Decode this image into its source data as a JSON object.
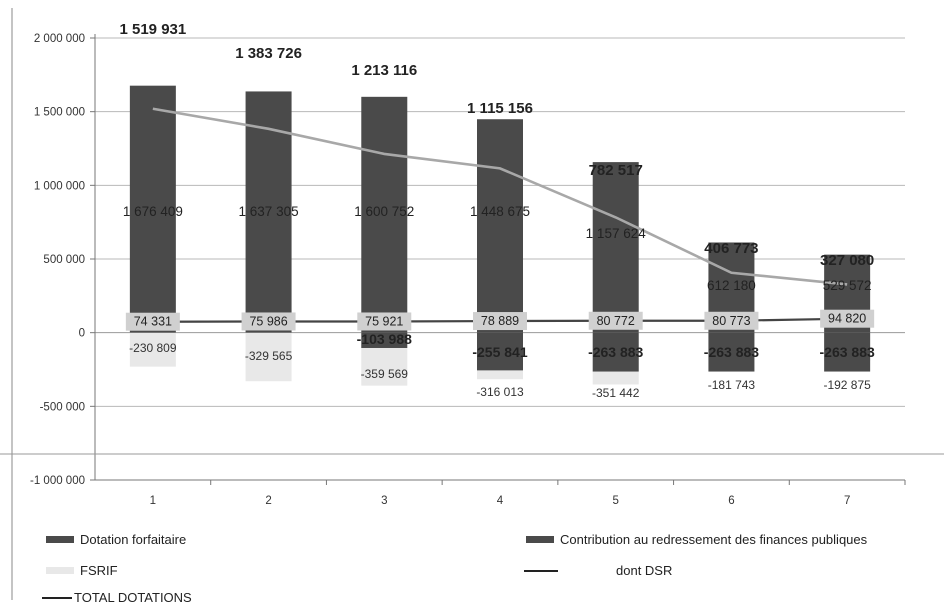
{
  "chart_data": {
    "type": "bar",
    "categories": [
      "1",
      "2",
      "3",
      "4",
      "5",
      "6",
      "7"
    ],
    "ylim": [
      -1000000,
      2000000
    ],
    "y_ticks": [
      "2 000 000",
      "1 500 000",
      "1 000 000",
      "500 000",
      "0",
      "-500 000",
      "-1 000 000"
    ],
    "y_tick_values": [
      2000000,
      1500000,
      1000000,
      500000,
      0,
      -500000,
      -1000000
    ],
    "grid": true,
    "legend_position": "bottom",
    "series": [
      {
        "name": "Dotation forfaitaire",
        "kind": "bar",
        "color": "#4a4a4a",
        "values": [
          1676409,
          1637305,
          1600752,
          1448675,
          1157624,
          612180,
          529572
        ],
        "labels": [
          "1 676 409",
          "1 637 305",
          "1 600 752",
          "1 448 675",
          "1 157 624",
          "612 180",
          "529 572"
        ]
      },
      {
        "name": "Contribution au redressement des finances publiques",
        "kind": "bar",
        "color": "#4a4a4a",
        "values": [
          0,
          0,
          -103988,
          -255841,
          -263883,
          -263883,
          -263883
        ],
        "labels": [
          "",
          "",
          "-103 988",
          "-255 841",
          "-263 883",
          "-263 883",
          "-263 883"
        ]
      },
      {
        "name": "FSRIF",
        "kind": "bar",
        "color": "#e8e8e8",
        "values": [
          -230809,
          -329565,
          -359569,
          -316013,
          -351442,
          -181743,
          -192875
        ],
        "labels": [
          "-230 809",
          "-329 565",
          "-359 569",
          "-316 013",
          "-351 442",
          "-181 743",
          "-192 875"
        ]
      },
      {
        "name": "dont DSR",
        "kind": "line",
        "color": "#444444",
        "values": [
          74331,
          75986,
          75921,
          78889,
          80772,
          80773,
          94820
        ],
        "labels": [
          "74 331",
          "75 986",
          "75 921",
          "78 889",
          "80 772",
          "80 773",
          "94 820"
        ]
      },
      {
        "name": "TOTAL DOTATIONS",
        "kind": "line",
        "color": "#a8a8a8",
        "values": [
          1519931,
          1383726,
          1213116,
          1115156,
          782517,
          406773,
          327080
        ],
        "labels": [
          "1 519 931",
          "1 383 726",
          "1 213 116",
          "1 115 156",
          "782 517",
          "406 773",
          "327 080"
        ]
      }
    ]
  },
  "legend": {
    "dotation": "Dotation forfaitaire",
    "contribution": "Contribution au redressement des finances publiques",
    "fsrif": "FSRIF",
    "dsr": "dont DSR",
    "total": "TOTAL DOTATIONS"
  }
}
